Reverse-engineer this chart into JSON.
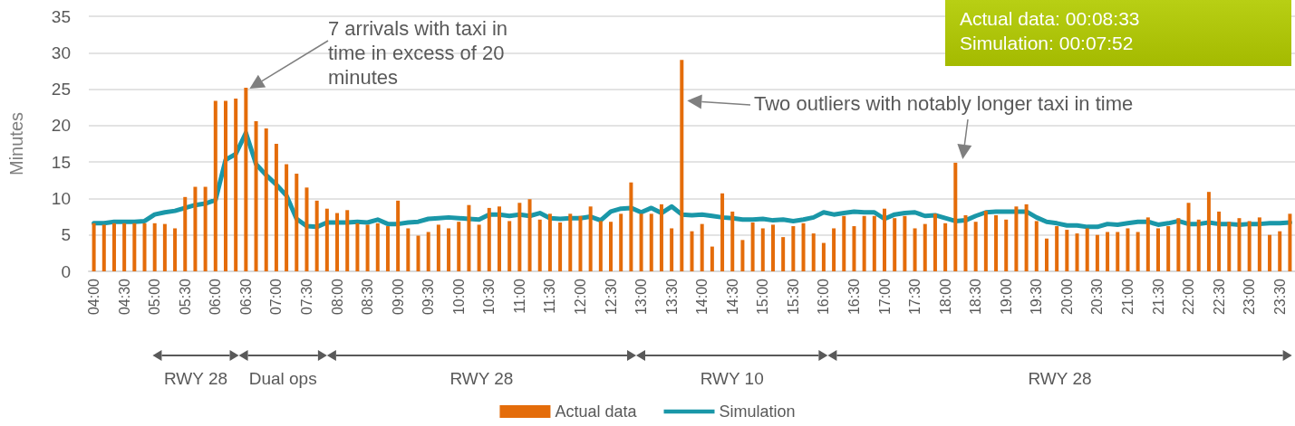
{
  "chart_data": {
    "type": "bar",
    "ylabel": "Minutes",
    "ylim": [
      0,
      35
    ],
    "yticks": [
      0,
      5,
      10,
      15,
      20,
      25,
      30,
      35
    ],
    "grid": "y",
    "legend": "bottom",
    "marker": "none",
    "line_style": "solid",
    "categories": [
      "04:00",
      null,
      null,
      "04:30",
      null,
      null,
      "05:00",
      null,
      null,
      "05:30",
      null,
      null,
      "06:00",
      null,
      null,
      "06:30",
      null,
      null,
      "07:00",
      null,
      null,
      "07:30",
      null,
      null,
      "08:00",
      null,
      null,
      "08:30",
      null,
      null,
      "09:00",
      null,
      null,
      "09:30",
      null,
      null,
      "10:00",
      null,
      null,
      "10:30",
      null,
      null,
      "11:00",
      null,
      null,
      "11:30",
      null,
      null,
      "12:00",
      null,
      null,
      "12:30",
      null,
      null,
      "13:00",
      null,
      null,
      "13:30",
      null,
      null,
      "14:00",
      null,
      null,
      "14:30",
      null,
      null,
      "15:00",
      null,
      null,
      "15:30",
      null,
      null,
      "16:00",
      null,
      null,
      "16:30",
      null,
      null,
      "17:00",
      null,
      null,
      "17:30",
      null,
      null,
      "18:00",
      null,
      null,
      "18:30",
      null,
      null,
      "19:00",
      null,
      null,
      "19:30",
      null,
      null,
      "20:00",
      null,
      null,
      "20:30",
      null,
      null,
      "21:00",
      null,
      null,
      "21:30",
      null,
      null,
      "22:00",
      null,
      null,
      "22:30",
      null,
      null,
      "23:00",
      null,
      null,
      "23:30",
      null
    ],
    "series": [
      {
        "name": "Actual data",
        "type": "bar",
        "color": "#e46c0a",
        "values": [
          6.6,
          6.4,
          6.6,
          6.6,
          6.6,
          6.6,
          6.6,
          6.5,
          5.9,
          10.2,
          11.6,
          11.6,
          23.4,
          23.4,
          23.7,
          25.2,
          20.6,
          19.6,
          17.5,
          14.7,
          13.4,
          11.5,
          9.7,
          8.6,
          8.0,
          8.4,
          6.6,
          6.4,
          6.6,
          6.2,
          9.7,
          5.9,
          4.9,
          5.4,
          6.4,
          5.9,
          6.8,
          9.1,
          6.4,
          8.7,
          8.9,
          6.9,
          9.4,
          9.9,
          7.1,
          7.9,
          6.7,
          7.9,
          7.6,
          8.9,
          6.9,
          6.8,
          7.9,
          12.2,
          7.9,
          7.9,
          9.2,
          5.9,
          29.0,
          5.5,
          6.5,
          3.4,
          10.7,
          8.2,
          4.3,
          6.7,
          5.9,
          6.4,
          4.7,
          6.2,
          6.6,
          5.2,
          3.9,
          5.9,
          7.6,
          6.2,
          7.6,
          7.6,
          8.6,
          7.3,
          7.6,
          5.9,
          6.5,
          7.9,
          6.6,
          14.9,
          7.7,
          6.8,
          8.3,
          7.7,
          7.1,
          8.9,
          9.2,
          6.9,
          4.5,
          6.2,
          5.7,
          5.2,
          5.9,
          5.0,
          5.4,
          5.4,
          5.9,
          5.4,
          7.4,
          5.9,
          6.2,
          7.3,
          9.4,
          7.1,
          10.9,
          8.2,
          6.8,
          7.3,
          6.9,
          7.4,
          5.0,
          5.5,
          7.9
        ]
      },
      {
        "name": "Simulation",
        "type": "line",
        "color": "#1a97a8",
        "values": [
          6.6,
          6.6,
          6.8,
          6.8,
          6.8,
          6.9,
          7.8,
          8.1,
          8.3,
          8.7,
          9.1,
          9.3,
          9.8,
          15.3,
          16.1,
          19.0,
          14.7,
          13.2,
          11.9,
          10.4,
          7.2,
          6.2,
          6.1,
          6.7,
          6.7,
          6.7,
          6.8,
          6.7,
          7.1,
          6.5,
          6.5,
          6.7,
          6.8,
          7.2,
          7.3,
          7.4,
          7.3,
          7.2,
          7.1,
          7.8,
          7.8,
          7.6,
          7.8,
          7.6,
          8.0,
          7.3,
          7.2,
          7.3,
          7.3,
          7.5,
          7.0,
          8.2,
          8.6,
          8.7,
          8.1,
          8.7,
          8.0,
          8.9,
          7.8,
          7.7,
          7.8,
          7.6,
          7.4,
          7.3,
          7.1,
          7.1,
          7.2,
          7.0,
          7.1,
          6.9,
          7.1,
          7.4,
          8.1,
          7.8,
          8.0,
          8.2,
          8.1,
          8.1,
          7.2,
          7.8,
          8.0,
          8.1,
          7.6,
          7.7,
          7.3,
          6.9,
          7.0,
          7.6,
          8.1,
          8.2,
          8.2,
          8.2,
          8.2,
          7.4,
          6.8,
          6.6,
          6.3,
          6.3,
          6.1,
          6.1,
          6.5,
          6.4,
          6.6,
          6.8,
          6.8,
          6.4,
          6.6,
          6.9,
          6.5,
          6.5,
          6.7,
          6.5,
          6.5,
          6.4,
          6.5,
          6.5,
          6.6,
          6.6,
          6.7
        ]
      }
    ],
    "annotations": [
      "7 arrivals with taxi in time in excess of 20 minutes",
      "Two outliers with notably longer taxi in time",
      "Actual data: 00:08:33",
      "Simulation: 00:07:52",
      "RWY 28",
      "Dual ops",
      "RWY 28",
      "RWY 10",
      "RWY 28"
    ]
  }
}
